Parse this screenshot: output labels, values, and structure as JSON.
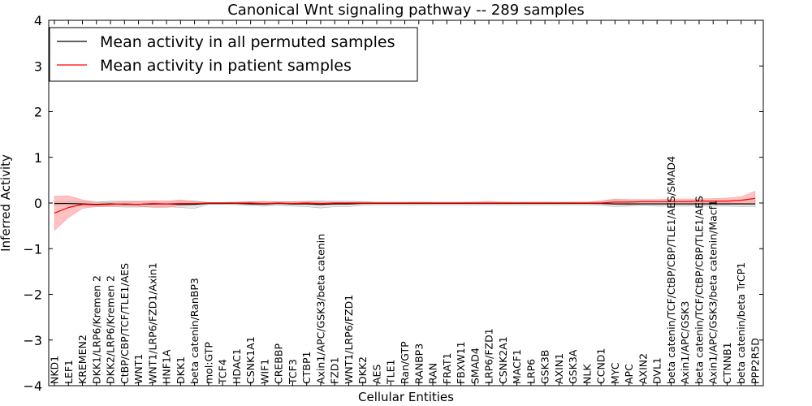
{
  "chart_data": {
    "type": "line",
    "title": "Canonical Wnt signaling pathway -- 289 samples",
    "xlabel": "Cellular Entities",
    "ylabel": "Inferred Activity",
    "ylim": [
      -4,
      4
    ],
    "yticks": [
      "4",
      "3",
      "2",
      "1",
      "0",
      "−1",
      "−2",
      "−3",
      "−4"
    ],
    "ytick_values": [
      4,
      3,
      2,
      1,
      0,
      -1,
      -2,
      -3,
      -4
    ],
    "grid": false,
    "legend_position": "upper-left",
    "categories": [
      "NKD1",
      "LEF1",
      "KREMEN2",
      "DKK1/LRP6/Kremen 2",
      "DKK2/LRP6/Kremen 2",
      "CtBP/CBP/TCF/TLE1/AES",
      "WNT1",
      "WNT1/LRP6/FZD1/Axin1",
      "HNF1A",
      "DKK1",
      "beta catenin/RanBP3",
      "mol:GTP",
      "TCF4",
      "HDAC1",
      "CSNK1A1",
      "WIF1",
      "CREBBP",
      "TCF3",
      "CTBP1",
      "Axin1/APC/GSK3/beta catenin",
      "FZD1",
      "WNT1/LRP6/FZD1",
      "DKK2",
      "AES",
      "TLE1",
      "Ran/GTP",
      "RANBP3",
      "RAN",
      "FRAT1",
      "FBXW11",
      "SMAD4",
      "LRP6/FZD1",
      "CSNK2A1",
      "MACF1",
      "LRP6",
      "GSK3B",
      "AXIN1",
      "GSK3A",
      "NLK",
      "CCND1",
      "MYC",
      "APC",
      "AXIN2",
      "DVL1",
      "beta catenin/TCF/CtBP/CBP/TLE1/AES/SMAD4",
      "Axin1/APC/GSK3",
      "beta catenin/TCF/CtBP/CBP/TLE1/AES",
      "Axin1/APC/GSK3/beta catenin/Macf1",
      "CTNNB1",
      "beta catenin/beta TrCP1",
      "PPP2R5D"
    ],
    "series": [
      {
        "name": "Mean activity in all permuted samples",
        "color": "#000000",
        "band_color": "#c8c8c8",
        "values": [
          -0.01,
          -0.01,
          -0.02,
          -0.03,
          -0.02,
          -0.03,
          -0.03,
          -0.02,
          -0.02,
          -0.03,
          -0.03,
          -0.01,
          -0.01,
          -0.01,
          -0.02,
          -0.02,
          -0.01,
          -0.02,
          -0.02,
          -0.03,
          -0.02,
          -0.02,
          -0.01,
          -0.01,
          -0.01,
          -0.01,
          -0.01,
          -0.01,
          -0.01,
          -0.01,
          -0.01,
          -0.01,
          -0.01,
          -0.01,
          -0.01,
          -0.01,
          -0.01,
          -0.01,
          -0.01,
          -0.01,
          -0.02,
          -0.02,
          -0.02,
          -0.02,
          -0.02,
          -0.02,
          -0.02,
          -0.02,
          -0.02,
          -0.02,
          -0.02
        ],
        "lower": [
          -0.05,
          -0.06,
          -0.07,
          -0.08,
          -0.08,
          -0.09,
          -0.09,
          -0.08,
          -0.08,
          -0.1,
          -0.12,
          -0.03,
          -0.03,
          -0.04,
          -0.06,
          -0.07,
          -0.05,
          -0.07,
          -0.08,
          -0.11,
          -0.08,
          -0.08,
          -0.05,
          -0.04,
          -0.04,
          -0.04,
          -0.04,
          -0.04,
          -0.04,
          -0.04,
          -0.04,
          -0.04,
          -0.04,
          -0.04,
          -0.04,
          -0.04,
          -0.04,
          -0.04,
          -0.04,
          -0.05,
          -0.08,
          -0.07,
          -0.06,
          -0.07,
          -0.07,
          -0.07,
          -0.07,
          -0.07,
          -0.07,
          -0.08,
          -0.08
        ],
        "upper": [
          0.03,
          0.04,
          0.03,
          0.02,
          0.04,
          0.04,
          0.04,
          0.04,
          0.04,
          0.04,
          0.05,
          0.01,
          0.01,
          0.02,
          0.03,
          0.03,
          0.03,
          0.03,
          0.04,
          0.05,
          0.04,
          0.04,
          0.03,
          0.02,
          0.02,
          0.02,
          0.02,
          0.02,
          0.02,
          0.02,
          0.02,
          0.02,
          0.02,
          0.02,
          0.02,
          0.02,
          0.02,
          0.02,
          0.02,
          0.03,
          0.07,
          0.06,
          0.05,
          0.05,
          0.05,
          0.05,
          0.05,
          0.05,
          0.05,
          0.06,
          0.06
        ]
      },
      {
        "name": "Mean activity in patient samples",
        "color": "#ff0000",
        "band_color": "#ff9090",
        "values": [
          -0.22,
          -0.1,
          -0.03,
          -0.04,
          -0.03,
          -0.02,
          -0.03,
          -0.01,
          -0.02,
          -0.01,
          -0.01,
          0.0,
          0.0,
          0.0,
          0.0,
          -0.01,
          0.0,
          -0.01,
          0.0,
          -0.01,
          0.0,
          0.0,
          0.0,
          0.0,
          0.0,
          0.0,
          0.0,
          0.0,
          0.0,
          0.0,
          0.0,
          0.0,
          0.0,
          0.0,
          0.0,
          0.0,
          0.0,
          0.0,
          0.0,
          0.0,
          0.02,
          0.02,
          0.03,
          0.03,
          0.03,
          0.03,
          0.04,
          0.04,
          0.04,
          0.06,
          0.1
        ],
        "lower": [
          -0.6,
          -0.32,
          -0.12,
          -0.08,
          -0.07,
          -0.06,
          -0.07,
          -0.1,
          -0.1,
          -0.06,
          -0.04,
          0.0,
          0.0,
          -0.01,
          -0.02,
          -0.04,
          -0.01,
          -0.03,
          -0.02,
          -0.05,
          -0.02,
          -0.02,
          -0.01,
          0.0,
          0.0,
          0.0,
          -0.01,
          0.0,
          0.0,
          0.0,
          0.0,
          -0.01,
          0.0,
          0.0,
          -0.01,
          -0.01,
          0.0,
          -0.01,
          -0.01,
          -0.02,
          -0.03,
          -0.04,
          -0.02,
          -0.02,
          -0.02,
          -0.02,
          -0.01,
          -0.01,
          -0.01,
          -0.01,
          -0.02
        ],
        "upper": [
          0.15,
          0.16,
          0.07,
          0.02,
          0.02,
          0.03,
          0.03,
          0.05,
          0.04,
          0.07,
          0.03,
          0.01,
          0.01,
          0.02,
          0.03,
          0.04,
          0.02,
          0.03,
          0.03,
          0.02,
          0.02,
          0.02,
          0.02,
          0.01,
          0.01,
          0.01,
          0.02,
          0.01,
          0.01,
          0.01,
          0.02,
          0.04,
          0.02,
          0.01,
          0.02,
          0.02,
          0.01,
          0.02,
          0.02,
          0.05,
          0.09,
          0.08,
          0.08,
          0.08,
          0.09,
          0.09,
          0.09,
          0.1,
          0.11,
          0.14,
          0.26
        ]
      }
    ]
  }
}
